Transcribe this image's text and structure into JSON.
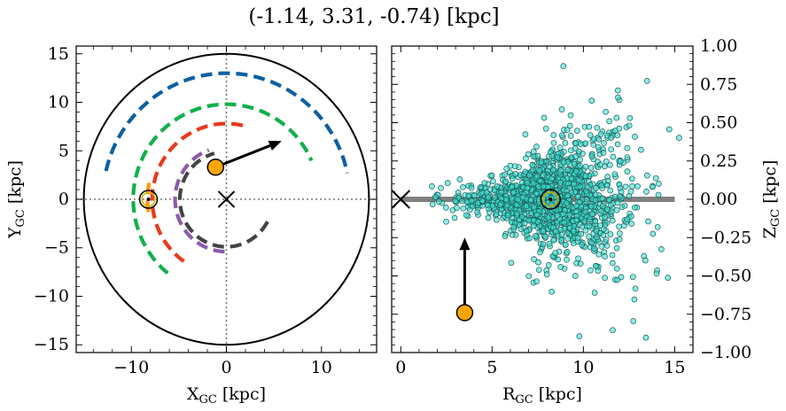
{
  "title": "(-1.14, 3.31, -0.74) [kpc]",
  "chart_data": [
    {
      "type": "scatter",
      "panel": "left",
      "xlabel": "X",
      "xlabel_sub": "GC",
      "xlabel_unit": " [kpc]",
      "ylabel": "Y",
      "ylabel_sub": "GC",
      "ylabel_unit": " [kpc]",
      "xlim": [
        -15.8,
        15.8
      ],
      "ylim": [
        -15.8,
        15.8
      ],
      "xticks": [
        -10,
        0,
        10
      ],
      "yticks": [
        -15,
        -10,
        -5,
        0,
        5,
        10,
        15
      ],
      "xtick_labels": [
        "−10",
        "0",
        "10"
      ],
      "ytick_labels": [
        "−15",
        "−10",
        "−5",
        "0",
        "5",
        "10",
        "15"
      ],
      "galaxy_radius": 15,
      "galactic_center": [
        0,
        0
      ],
      "sun": [
        -8.2,
        0
      ],
      "star": [
        -1.14,
        3.31
      ],
      "velocity_arrow_end": [
        5.8,
        6.0
      ],
      "arms": [
        {
          "color": "#0e5fa0",
          "radius": 13.0,
          "theta_start": 167,
          "theta_end": 12
        },
        {
          "color": "#10b04b",
          "radius": 9.8,
          "theta_start": 231,
          "theta_end": 24
        },
        {
          "color": "#ff9900",
          "radius": 8.3,
          "theta_start": 189,
          "theta_end": 164
        },
        {
          "color": "#e8391b",
          "radius": 7.8,
          "theta_start": 235,
          "theta_end": 75
        },
        {
          "color": "#8b5ca8",
          "radius": 5.4,
          "theta_start": 268,
          "theta_end": 110
        },
        {
          "color": "#444444",
          "radius": 4.9,
          "theta_start": 332,
          "theta_end": 105
        }
      ]
    },
    {
      "type": "scatter",
      "panel": "right",
      "xlabel": "R",
      "xlabel_sub": "GC",
      "xlabel_unit": " [kpc]",
      "ylabel": "Z",
      "ylabel_sub": "GC",
      "ylabel_unit": " [kpc]",
      "xlim": [
        -0.5,
        16.0
      ],
      "ylim": [
        -1.0,
        1.0
      ],
      "xticks": [
        0,
        5,
        10,
        15
      ],
      "yticks": [
        -1.0,
        -0.75,
        -0.5,
        -0.25,
        0.0,
        0.25,
        0.5,
        0.75,
        1.0
      ],
      "xtick_labels": [
        "0",
        "5",
        "10",
        "15"
      ],
      "ytick_labels": [
        "−1.00",
        "−0.75",
        "−0.50",
        "−0.25",
        "0.00",
        "0.25",
        "0.50",
        "0.75",
        "1.00"
      ],
      "disk_line": [
        0,
        15
      ],
      "galactic_center": [
        0,
        0
      ],
      "sun": [
        8.2,
        0
      ],
      "star": [
        3.5,
        -0.74
      ],
      "velocity_arrow_end": [
        3.5,
        -0.25
      ],
      "point_color": "#40e0d0",
      "points_description_count": 1400
    }
  ]
}
